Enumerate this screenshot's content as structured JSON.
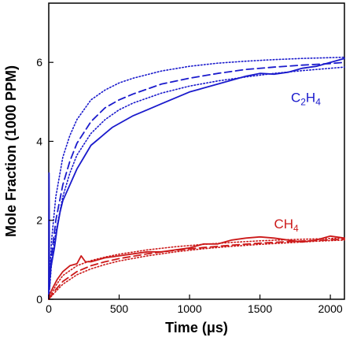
{
  "chart_data": {
    "type": "line",
    "title": "",
    "xlabel": "Time (μs)",
    "ylabel": "Mole Fraction (1000 PPM)",
    "xlim": [
      0,
      2100
    ],
    "ylim": [
      0,
      7.5
    ],
    "x_ticks": [
      0,
      500,
      1000,
      1500,
      2000
    ],
    "y_ticks": [
      0,
      2,
      4,
      6
    ],
    "grid": false,
    "legend": "none",
    "series": [
      {
        "label_parts": [
          "C",
          "2",
          "H",
          "4"
        ],
        "label_anchor": [
          1720,
          5.0
        ],
        "color": "#1a1acc",
        "curves": [
          {
            "style": "solid",
            "x": [
              0,
              2,
              5,
              10,
              20,
              40,
              60,
              80,
              100,
              150,
              200,
              250,
              300,
              350,
              400,
              450,
              500,
              600,
              700,
              800,
              900,
              1000,
              1100,
              1200,
              1300,
              1400,
              1500,
              1600,
              1700,
              1800,
              1900,
              2000,
              2100
            ],
            "y": [
              0,
              3.2,
              0.4,
              0.7,
              0.9,
              1.3,
              1.8,
              2.2,
              2.5,
              2.9,
              3.3,
              3.6,
              3.9,
              4.05,
              4.2,
              4.35,
              4.45,
              4.65,
              4.8,
              4.95,
              5.1,
              5.25,
              5.35,
              5.45,
              5.55,
              5.65,
              5.72,
              5.7,
              5.75,
              5.85,
              5.9,
              6.0,
              6.1
            ]
          },
          {
            "style": "dashed",
            "x": [
              0,
              20,
              50,
              100,
              150,
              200,
              300,
              400,
              500,
              600,
              800,
              1000,
              1200,
              1400,
              1600,
              1800,
              2000,
              2100
            ],
            "y": [
              0,
              1.1,
              2.0,
              2.9,
              3.5,
              3.95,
              4.5,
              4.85,
              5.05,
              5.2,
              5.45,
              5.6,
              5.72,
              5.82,
              5.88,
              5.93,
              5.97,
              6.0
            ]
          },
          {
            "style": "dotted-upper",
            "x": [
              0,
              20,
              50,
              100,
              150,
              200,
              300,
              400,
              500,
              600,
              800,
              1000,
              1200,
              1400,
              1600,
              1800,
              2000,
              2100
            ],
            "y": [
              0,
              1.5,
              2.6,
              3.6,
              4.15,
              4.55,
              5.05,
              5.3,
              5.48,
              5.6,
              5.78,
              5.9,
              5.98,
              6.03,
              6.07,
              6.1,
              6.12,
              6.13
            ]
          },
          {
            "style": "dotted-lower",
            "x": [
              0,
              20,
              50,
              100,
              150,
              200,
              300,
              400,
              500,
              600,
              800,
              1000,
              1200,
              1400,
              1600,
              1800,
              2000,
              2100
            ],
            "y": [
              0,
              0.9,
              1.7,
              2.6,
              3.2,
              3.65,
              4.2,
              4.55,
              4.8,
              4.97,
              5.22,
              5.4,
              5.53,
              5.63,
              5.72,
              5.79,
              5.85,
              5.88
            ]
          }
        ]
      },
      {
        "label_parts": [
          "CH",
          "4"
        ],
        "label_anchor": [
          1600,
          1.8
        ],
        "color": "#cc1a1a",
        "curves": [
          {
            "style": "solid",
            "x": [
              0,
              10,
              30,
              60,
              100,
              150,
              200,
              230,
              260,
              300,
              400,
              500,
              600,
              700,
              800,
              900,
              1000,
              1100,
              1200,
              1300,
              1400,
              1500,
              1600,
              1700,
              1800,
              1900,
              2000,
              2100
            ],
            "y": [
              0,
              0.15,
              0.3,
              0.5,
              0.7,
              0.85,
              0.9,
              1.1,
              0.95,
              0.95,
              1.05,
              1.1,
              1.15,
              1.2,
              1.2,
              1.25,
              1.3,
              1.4,
              1.4,
              1.5,
              1.55,
              1.58,
              1.55,
              1.5,
              1.45,
              1.5,
              1.6,
              1.55
            ]
          },
          {
            "style": "dashed",
            "x": [
              0,
              50,
              100,
              200,
              300,
              400,
              500,
              700,
              900,
              1100,
              1300,
              1500,
              1700,
              1900,
              2100
            ],
            "y": [
              0,
              0.25,
              0.45,
              0.7,
              0.85,
              0.95,
              1.03,
              1.15,
              1.24,
              1.31,
              1.37,
              1.42,
              1.46,
              1.49,
              1.52
            ]
          },
          {
            "style": "dotted-upper",
            "x": [
              0,
              50,
              100,
              200,
              300,
              400,
              500,
              700,
              900,
              1100,
              1300,
              1500,
              1700,
              1900,
              2100
            ],
            "y": [
              0,
              0.35,
              0.6,
              0.85,
              0.98,
              1.07,
              1.14,
              1.25,
              1.33,
              1.39,
              1.44,
              1.48,
              1.51,
              1.53,
              1.55
            ]
          },
          {
            "style": "dotted-lower",
            "x": [
              0,
              50,
              100,
              200,
              300,
              400,
              500,
              700,
              900,
              1100,
              1300,
              1500,
              1700,
              1900,
              2100
            ],
            "y": [
              0,
              0.2,
              0.38,
              0.62,
              0.77,
              0.88,
              0.97,
              1.1,
              1.2,
              1.28,
              1.34,
              1.39,
              1.43,
              1.47,
              1.5
            ]
          }
        ]
      }
    ]
  }
}
